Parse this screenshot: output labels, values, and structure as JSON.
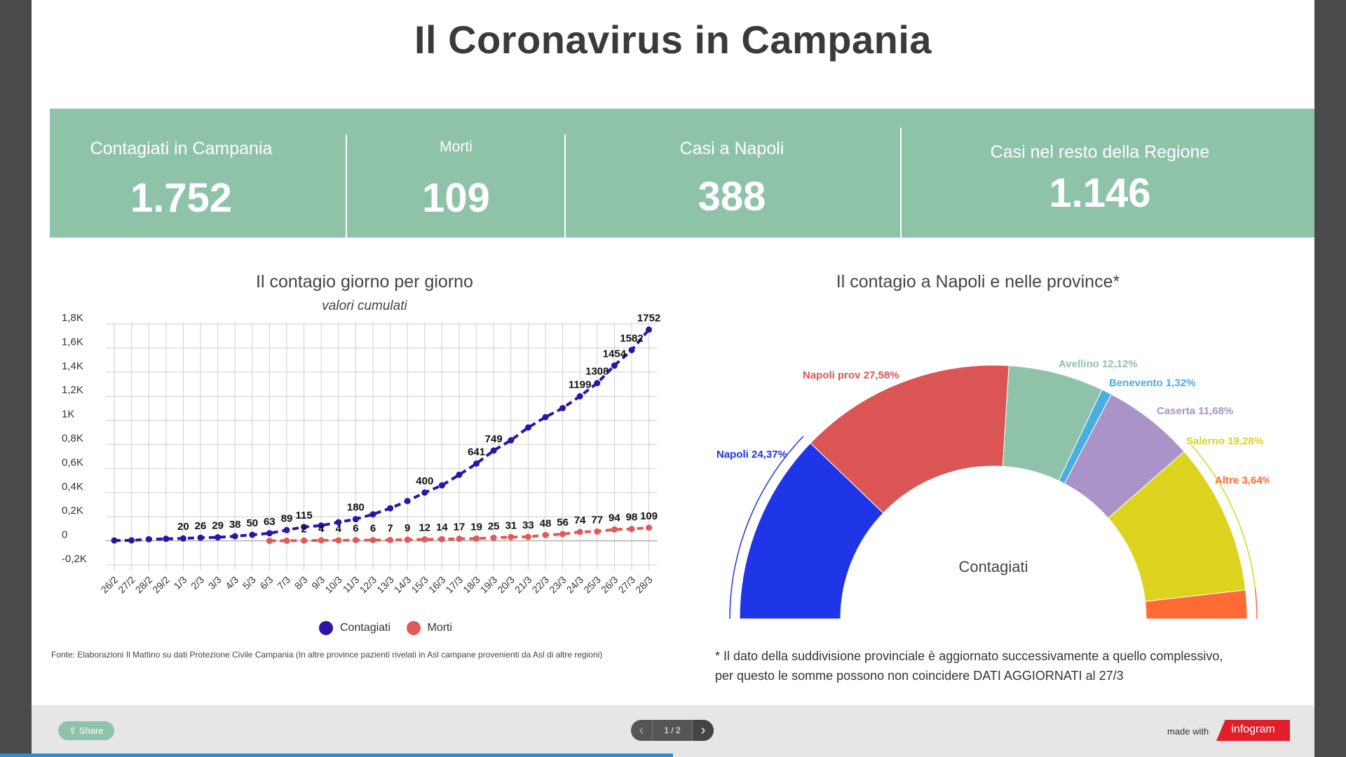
{
  "title": "Il Coronavirus in Campania",
  "stats": [
    {
      "label": "Contagiati in Campania",
      "value": "1.752"
    },
    {
      "label": "Morti",
      "value": "109"
    },
    {
      "label": "Casi a Napoli",
      "value": "388"
    },
    {
      "label": "Casi nel resto della Regione",
      "value": "1.146"
    }
  ],
  "line_title": "Il contagio giorno per giorno",
  "line_subtitle": "valori cumulati",
  "pie_title": "Il contagio a Napoli e nelle province*",
  "pie_center": "Contagiati",
  "legend": {
    "contagiati": "Contagiati",
    "morti": "Morti"
  },
  "fonte": "Fonte: Elaborazioni Il Mattino su dati Protezione Civile Campania (In altre province pazienti rivelati in Asl campane provenienti da Asl di altre regioni)",
  "note_line1": "* Il dato della suddivisione provinciale è aggiornato successivamente a quello complessivo,",
  "note_line2": "per questo le somme possono non coincidere DATI AGGIORNATI al 27/3",
  "footer": {
    "share": "Share",
    "page": "1 / 2",
    "made_with": "made with",
    "brand": "infogram"
  },
  "colors": {
    "contagiati": "#2e13a8",
    "morti": "#e05a5a",
    "header": "#8ec3aa"
  },
  "chart_data": [
    {
      "type": "line",
      "title": "Il contagio giorno per giorno",
      "subtitle": "valori cumulati",
      "categories": [
        "26/2",
        "27/2",
        "28/2",
        "29/2",
        "1/3",
        "2/3",
        "3/3",
        "4/3",
        "5/3",
        "6/3",
        "7/3",
        "8/3",
        "9/3",
        "10/3",
        "11/3",
        "12/3",
        "13/3",
        "14/3",
        "15/3",
        "16/3",
        "17/3",
        "18/3",
        "19/3",
        "20/3",
        "21/3",
        "22/3",
        "23/3",
        "24/3",
        "25/3",
        "26/3",
        "27/3",
        "28/3"
      ],
      "yticks": [
        "1,8K",
        "1,6K",
        "1,4K",
        "1,2K",
        "1K",
        "0,8K",
        "0,6K",
        "0,4K",
        "0,2K",
        "0",
        "-0,2K"
      ],
      "ylim": [
        -200,
        1800
      ],
      "series": [
        {
          "name": "Contagiati",
          "color": "#2e13a8",
          "values": [
            3,
            4,
            13,
            17,
            20,
            26,
            29,
            38,
            50,
            63,
            89,
            115,
            127,
            154,
            180,
            220,
            270,
            330,
            400,
            460,
            548,
            641,
            749,
            834,
            940,
            1026,
            1101,
            1199,
            1308,
            1454,
            1582,
            1752
          ],
          "labels": [
            "",
            "",
            "",
            "",
            "20",
            "26",
            "29",
            "38",
            "50",
            "63",
            "89",
            "115",
            "",
            "",
            "180",
            "",
            "",
            "",
            "400",
            "",
            "",
            "641",
            "749",
            "",
            "",
            "",
            "",
            "1199",
            "1308",
            "1454",
            "1582",
            "1752"
          ]
        },
        {
          "name": "Morti",
          "color": "#e05a5a",
          "values": [
            null,
            null,
            null,
            null,
            null,
            null,
            null,
            null,
            null,
            0,
            1,
            2,
            4,
            4,
            6,
            6,
            7,
            9,
            12,
            14,
            17,
            19,
            25,
            31,
            33,
            48,
            56,
            74,
            77,
            94,
            98,
            109
          ],
          "labels": [
            "",
            "",
            "",
            "",
            "",
            "",
            "",
            "",
            "",
            "",
            "",
            "2",
            "4",
            "4",
            "6",
            "6",
            "7",
            "9",
            "12",
            "14",
            "17",
            "19",
            "25",
            "31",
            "33",
            "48",
            "56",
            "74",
            "77",
            "94",
            "98",
            "109"
          ]
        }
      ],
      "legend": "bottom-center",
      "grid": true
    },
    {
      "type": "pie",
      "variant": "half-donut",
      "title": "Il contagio a Napoli e nelle province*",
      "center_label": "Contagiati",
      "slices": [
        {
          "label": "Napoli 24,37%",
          "value": 24.37,
          "color": "#1e35e8"
        },
        {
          "label": "Napoli prov 27,58%",
          "value": 27.58,
          "color": "#db5555"
        },
        {
          "label": "Avellino 12,12%",
          "value": 12.12,
          "color": "#8ec3aa"
        },
        {
          "label": "Benevento 1,32%",
          "value": 1.32,
          "color": "#4aaee0"
        },
        {
          "label": "Caserta 11,68%",
          "value": 11.68,
          "color": "#a993c8"
        },
        {
          "label": "Salerno 19,28%",
          "value": 19.28,
          "color": "#ddd21e"
        },
        {
          "label": "Altre 3,64%",
          "value": 3.64,
          "color": "#ff6b35"
        }
      ]
    }
  ]
}
